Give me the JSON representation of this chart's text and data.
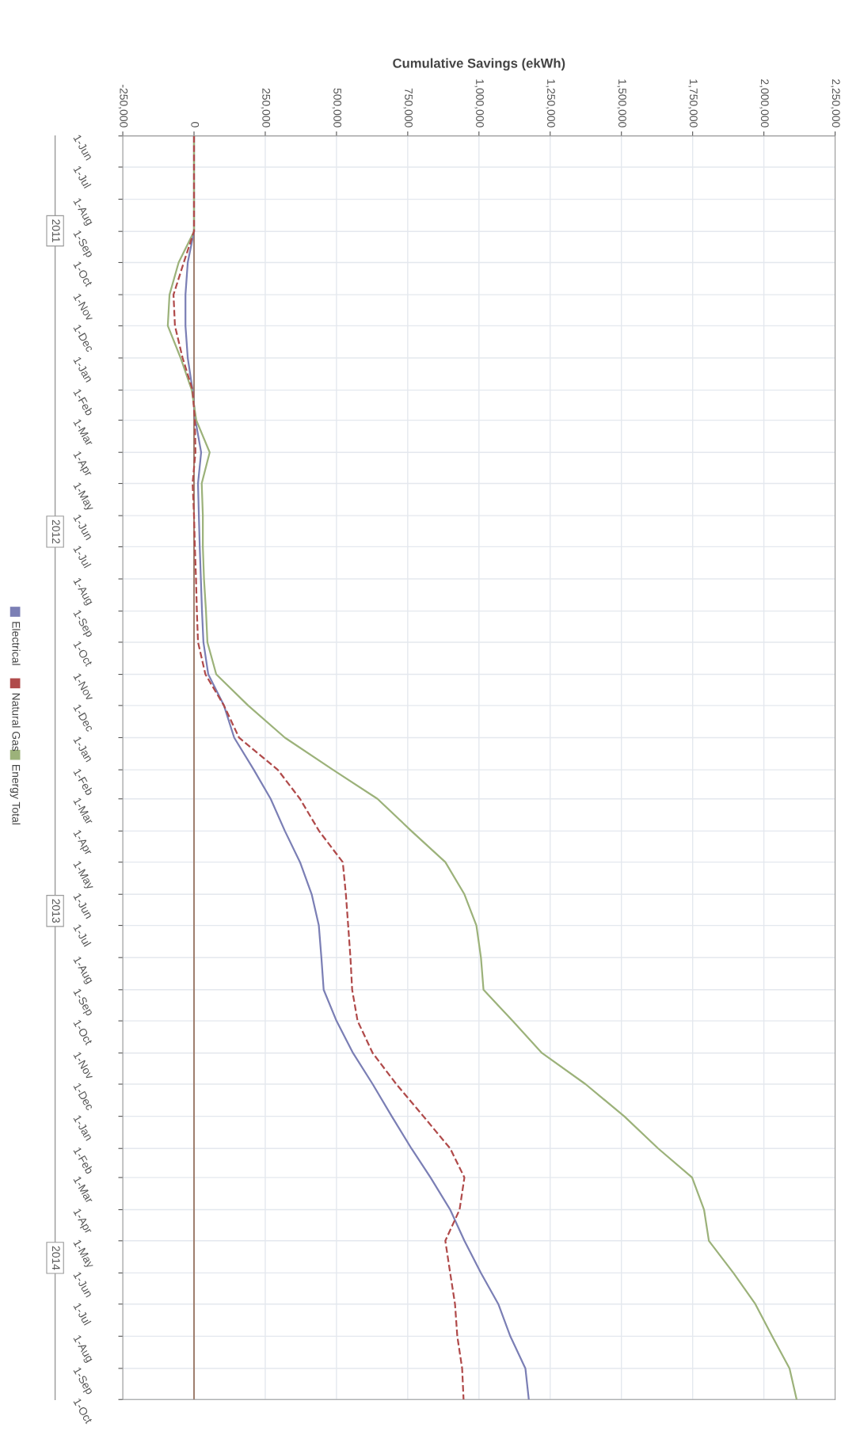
{
  "chart_data": {
    "type": "line",
    "orientation": "horizontal",
    "xlabel": "Cumulative Savings (ekWh)",
    "x": [
      "2011-06-01",
      "2011-07-01",
      "2011-08-01",
      "2011-09-01",
      "2011-10-01",
      "2011-11-01",
      "2011-12-01",
      "2012-01-01",
      "2012-02-01",
      "2012-03-01",
      "2012-04-01",
      "2012-05-01",
      "2012-06-01",
      "2012-07-01",
      "2012-08-01",
      "2012-09-01",
      "2012-10-01",
      "2012-11-01",
      "2012-12-01",
      "2013-01-01",
      "2013-02-01",
      "2013-03-01",
      "2013-04-01",
      "2013-05-01",
      "2013-06-01",
      "2013-07-01",
      "2013-08-01",
      "2013-09-01",
      "2013-10-01",
      "2013-11-01",
      "2013-12-01",
      "2014-01-01",
      "2014-02-01",
      "2014-03-01",
      "2014-04-01",
      "2014-05-01",
      "2014-06-01",
      "2014-07-01",
      "2014-08-01",
      "2014-09-01",
      "2014-10-01"
    ],
    "series": [
      {
        "name": "Electrical",
        "color": "#7b7fb5",
        "line_style": "solid",
        "values": [
          0,
          0,
          0,
          0,
          -22000,
          -30000,
          -30000,
          -22000,
          -5000,
          5000,
          25000,
          14000,
          17000,
          20000,
          24000,
          28000,
          33000,
          50000,
          105000,
          141000,
          210000,
          269000,
          319000,
          372000,
          413000,
          438000,
          447000,
          455000,
          500000,
          558000,
          627000,
          694000,
          763000,
          830000,
          899000,
          949000,
          1007000,
          1068000,
          1110000,
          1163000,
          1175000
        ]
      },
      {
        "name": "Natural Gas",
        "color": "#b04a4a",
        "line_style": "dashed",
        "values": [
          0,
          0,
          0,
          0,
          -36000,
          -72000,
          -67000,
          -40000,
          -5000,
          3000,
          5000,
          -5000,
          0,
          3000,
          7000,
          10000,
          14000,
          40000,
          105000,
          158000,
          294000,
          372000,
          439000,
          522000,
          533000,
          541000,
          549000,
          555000,
          574000,
          627000,
          710000,
          805000,
          899000,
          949000,
          932000,
          882000,
          899000,
          916000,
          924000,
          941000,
          946000
        ]
      },
      {
        "name": "Energy Total",
        "color": "#9cb27a",
        "line_style": "solid",
        "values": [
          0,
          0,
          0,
          0,
          -54000,
          -86000,
          -92000,
          -47000,
          -8000,
          8000,
          55000,
          27000,
          31000,
          31000,
          35000,
          42000,
          47000,
          78000,
          190000,
          319000,
          488000,
          644000,
          763000,
          882000,
          949000,
          991000,
          1007000,
          1016000,
          1118000,
          1221000,
          1374000,
          1510000,
          1629000,
          1748000,
          1790000,
          1807000,
          1893000,
          1970000,
          2029000,
          2090000,
          2115000
        ]
      }
    ],
    "xlim": [
      -250000,
      2250000
    ],
    "xticks": [
      {
        "value": -250000,
        "label": "-250,000"
      },
      0,
      {
        "value": 250000,
        "label": "250,000"
      },
      {
        "value": 500000,
        "label": "500,000"
      },
      {
        "value": 750000,
        "label": "750,000"
      },
      {
        "value": 1000000,
        "label": "1,000,000"
      },
      {
        "value": 1250000,
        "label": "1,250,000"
      },
      {
        "value": 1500000,
        "label": "1,500,000"
      },
      {
        "value": 1750000,
        "label": "1,750,000"
      },
      {
        "value": 2000000,
        "label": "2,000,000"
      },
      {
        "value": 2250000,
        "label": "2,250,000"
      }
    ],
    "ylim": [
      "2014-10-01",
      "2011-06-01"
    ],
    "yticks": [
      {
        "value": "2011-06-01",
        "label": "1-Jun"
      },
      {
        "value": "2011-07-01",
        "label": "1-Jul"
      },
      {
        "value": "2011-08-01",
        "label": "1-Aug"
      },
      {
        "value": "2011-09-01",
        "label": "1-Sep"
      },
      {
        "value": "2011-10-01",
        "label": "1-Oct"
      },
      {
        "value": "2011-11-01",
        "label": "1-Nov"
      },
      {
        "value": "2011-12-01",
        "label": "1-Dec"
      },
      {
        "value": "2012-01-01",
        "label": "1-Jan"
      },
      {
        "value": "2012-02-01",
        "label": "1-Feb"
      },
      {
        "value": "2012-03-01",
        "label": "1-Mar"
      },
      {
        "value": "2012-04-01",
        "label": "1-Apr"
      },
      {
        "value": "2012-05-01",
        "label": "1-May"
      },
      {
        "value": "2012-06-01",
        "label": "1-Jun"
      },
      {
        "value": "2012-07-01",
        "label": "1-Jul"
      },
      {
        "value": "2012-08-01",
        "label": "1-Aug"
      },
      {
        "value": "2012-09-01",
        "label": "1-Sep"
      },
      {
        "value": "2012-10-01",
        "label": "1-Oct"
      },
      {
        "value": "2012-11-01",
        "label": "1-Nov"
      },
      {
        "value": "2012-12-01",
        "label": "1-Dec"
      },
      {
        "value": "2013-01-01",
        "label": "1-Jan"
      },
      {
        "value": "2013-02-01",
        "label": "1-Feb"
      },
      {
        "value": "2013-03-01",
        "label": "1-Mar"
      },
      {
        "value": "2013-04-01",
        "label": "1-Apr"
      },
      {
        "value": "2013-05-01",
        "label": "1-May"
      },
      {
        "value": "2013-06-01",
        "label": "1-Jun"
      },
      {
        "value": "2013-07-01",
        "label": "1-Jul"
      },
      {
        "value": "2013-08-01",
        "label": "1-Aug"
      },
      {
        "value": "2013-09-01",
        "label": "1-Sep"
      },
      {
        "value": "2013-10-01",
        "label": "1-Oct"
      },
      {
        "value": "2013-11-01",
        "label": "1-Nov"
      },
      {
        "value": "2013-12-01",
        "label": "1-Dec"
      },
      {
        "value": "2014-01-01",
        "label": "1-Jan"
      },
      {
        "value": "2014-02-01",
        "label": "1-Feb"
      },
      {
        "value": "2014-03-01",
        "label": "1-Mar"
      },
      {
        "value": "2014-04-01",
        "label": "1-Apr"
      },
      {
        "value": "2014-05-01",
        "label": "1-May"
      },
      {
        "value": "2014-06-01",
        "label": "1-Jun"
      },
      {
        "value": "2014-07-01",
        "label": "1-Jul"
      },
      {
        "value": "2014-08-01",
        "label": "1-Aug"
      },
      {
        "value": "2014-09-01",
        "label": "1-Sep"
      },
      {
        "value": "2014-10-01",
        "label": "1-Oct"
      }
    ],
    "annotations": [
      "2011",
      "2012",
      "2013",
      "2014"
    ],
    "ref_lines": [
      {
        "axis": "x",
        "value": 0,
        "color": "#a08070"
      }
    ],
    "grid": true,
    "legend": "left",
    "marker": "none"
  }
}
